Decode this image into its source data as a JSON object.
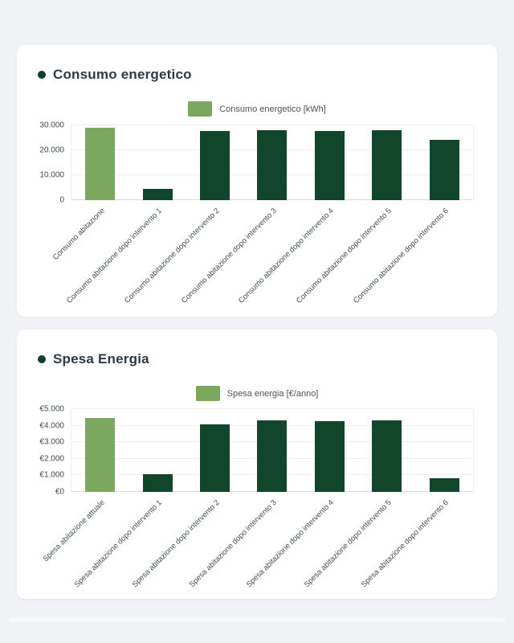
{
  "colors": {
    "background": "#f1f2f5",
    "card": "#ffffff",
    "title_text": "#2d3a49",
    "bullet": "#123f2a",
    "bar_light_green": "#7ca75f",
    "bar_dark_green": "#12462c",
    "axis_text": "#3e4e48",
    "grid_line": "#eef0f2"
  },
  "chart_data": [
    {
      "type": "bar",
      "title": "Consumo energetico",
      "legend": "Consumo energetico [kWh]",
      "legend_position": "top-center",
      "grid": true,
      "xlabel": "",
      "ylabel": "",
      "ylim": [
        0,
        30000
      ],
      "categories": [
        "Consumo abitazione",
        "Consumo abitazione dopo intervento 1",
        "Consumo abitazione dopo intervento 2",
        "Consumo abitazione dopo intervento 3",
        "Consumo abitazione dopo intervento 4",
        "Consumo abitazione dopo intervento 5",
        "Consumo abitazione dopo intervento 6"
      ],
      "values": [
        29000,
        4400,
        27900,
        28200,
        27600,
        28200,
        24200
      ],
      "yticks": [
        {
          "value": 0,
          "label": "0"
        },
        {
          "value": 10000,
          "label": "10.000"
        },
        {
          "value": 20000,
          "label": "20.000"
        },
        {
          "value": 30000,
          "label": "30.000"
        }
      ],
      "bar_color_first": "#7ca75f",
      "bar_color": "#12462c",
      "legend_color": "#7ca75f"
    },
    {
      "type": "bar",
      "title": "Spesa Energia",
      "legend": "Spesa energia [€/anno]",
      "legend_position": "top-center",
      "grid": true,
      "xlabel": "",
      "ylabel": "",
      "ylim": [
        0,
        5000
      ],
      "categories": [
        "Spesa abitazione attuale",
        "Spesa abitazione dopo intervento 1",
        "Spesa abitazione dopo intervento 2",
        "Spesa abitazione dopo intervento 3",
        "Spesa abitazione dopo intervento 4",
        "Spesa abitazione dopo intervento 5",
        "Spesa abitazione dopo intervento 6"
      ],
      "values": [
        4480,
        1050,
        4060,
        4340,
        4260,
        4340,
        850
      ],
      "yticks": [
        {
          "value": 0,
          "label": "€0"
        },
        {
          "value": 1000,
          "label": "€1.000"
        },
        {
          "value": 2000,
          "label": "€2.000"
        },
        {
          "value": 3000,
          "label": "€3.000"
        },
        {
          "value": 4000,
          "label": "€4.000"
        },
        {
          "value": 5000,
          "label": "€5.000"
        }
      ],
      "bar_color_first": "#7ca75f",
      "bar_color": "#12462c",
      "legend_color": "#7ca75f"
    }
  ]
}
